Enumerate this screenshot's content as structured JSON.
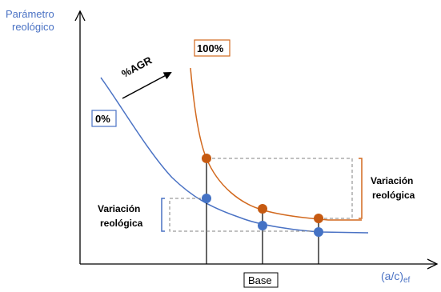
{
  "y_axis_label_line1": "Parámetro",
  "y_axis_label_line2": "reológico",
  "x_axis_label_main": "(a/c)",
  "x_axis_label_sub": "ef",
  "base_label": "Base",
  "arrow_label": "%AGR",
  "curve_100_label": "100%",
  "curve_0_label": "0%",
  "right_bracket_line1": "Variación",
  "right_bracket_line2": "reológica",
  "left_bracket_line1": "Variación",
  "left_bracket_line2": "reológica",
  "colors": {
    "axis_label_blue": "#4a72c4",
    "curve_orange": "#d2691e",
    "curve_blue": "#4a72c4",
    "point_orange": "#c65a11",
    "point_blue": "#4472c4",
    "dash_gray": "#808080",
    "axis_black": "#000000"
  }
}
